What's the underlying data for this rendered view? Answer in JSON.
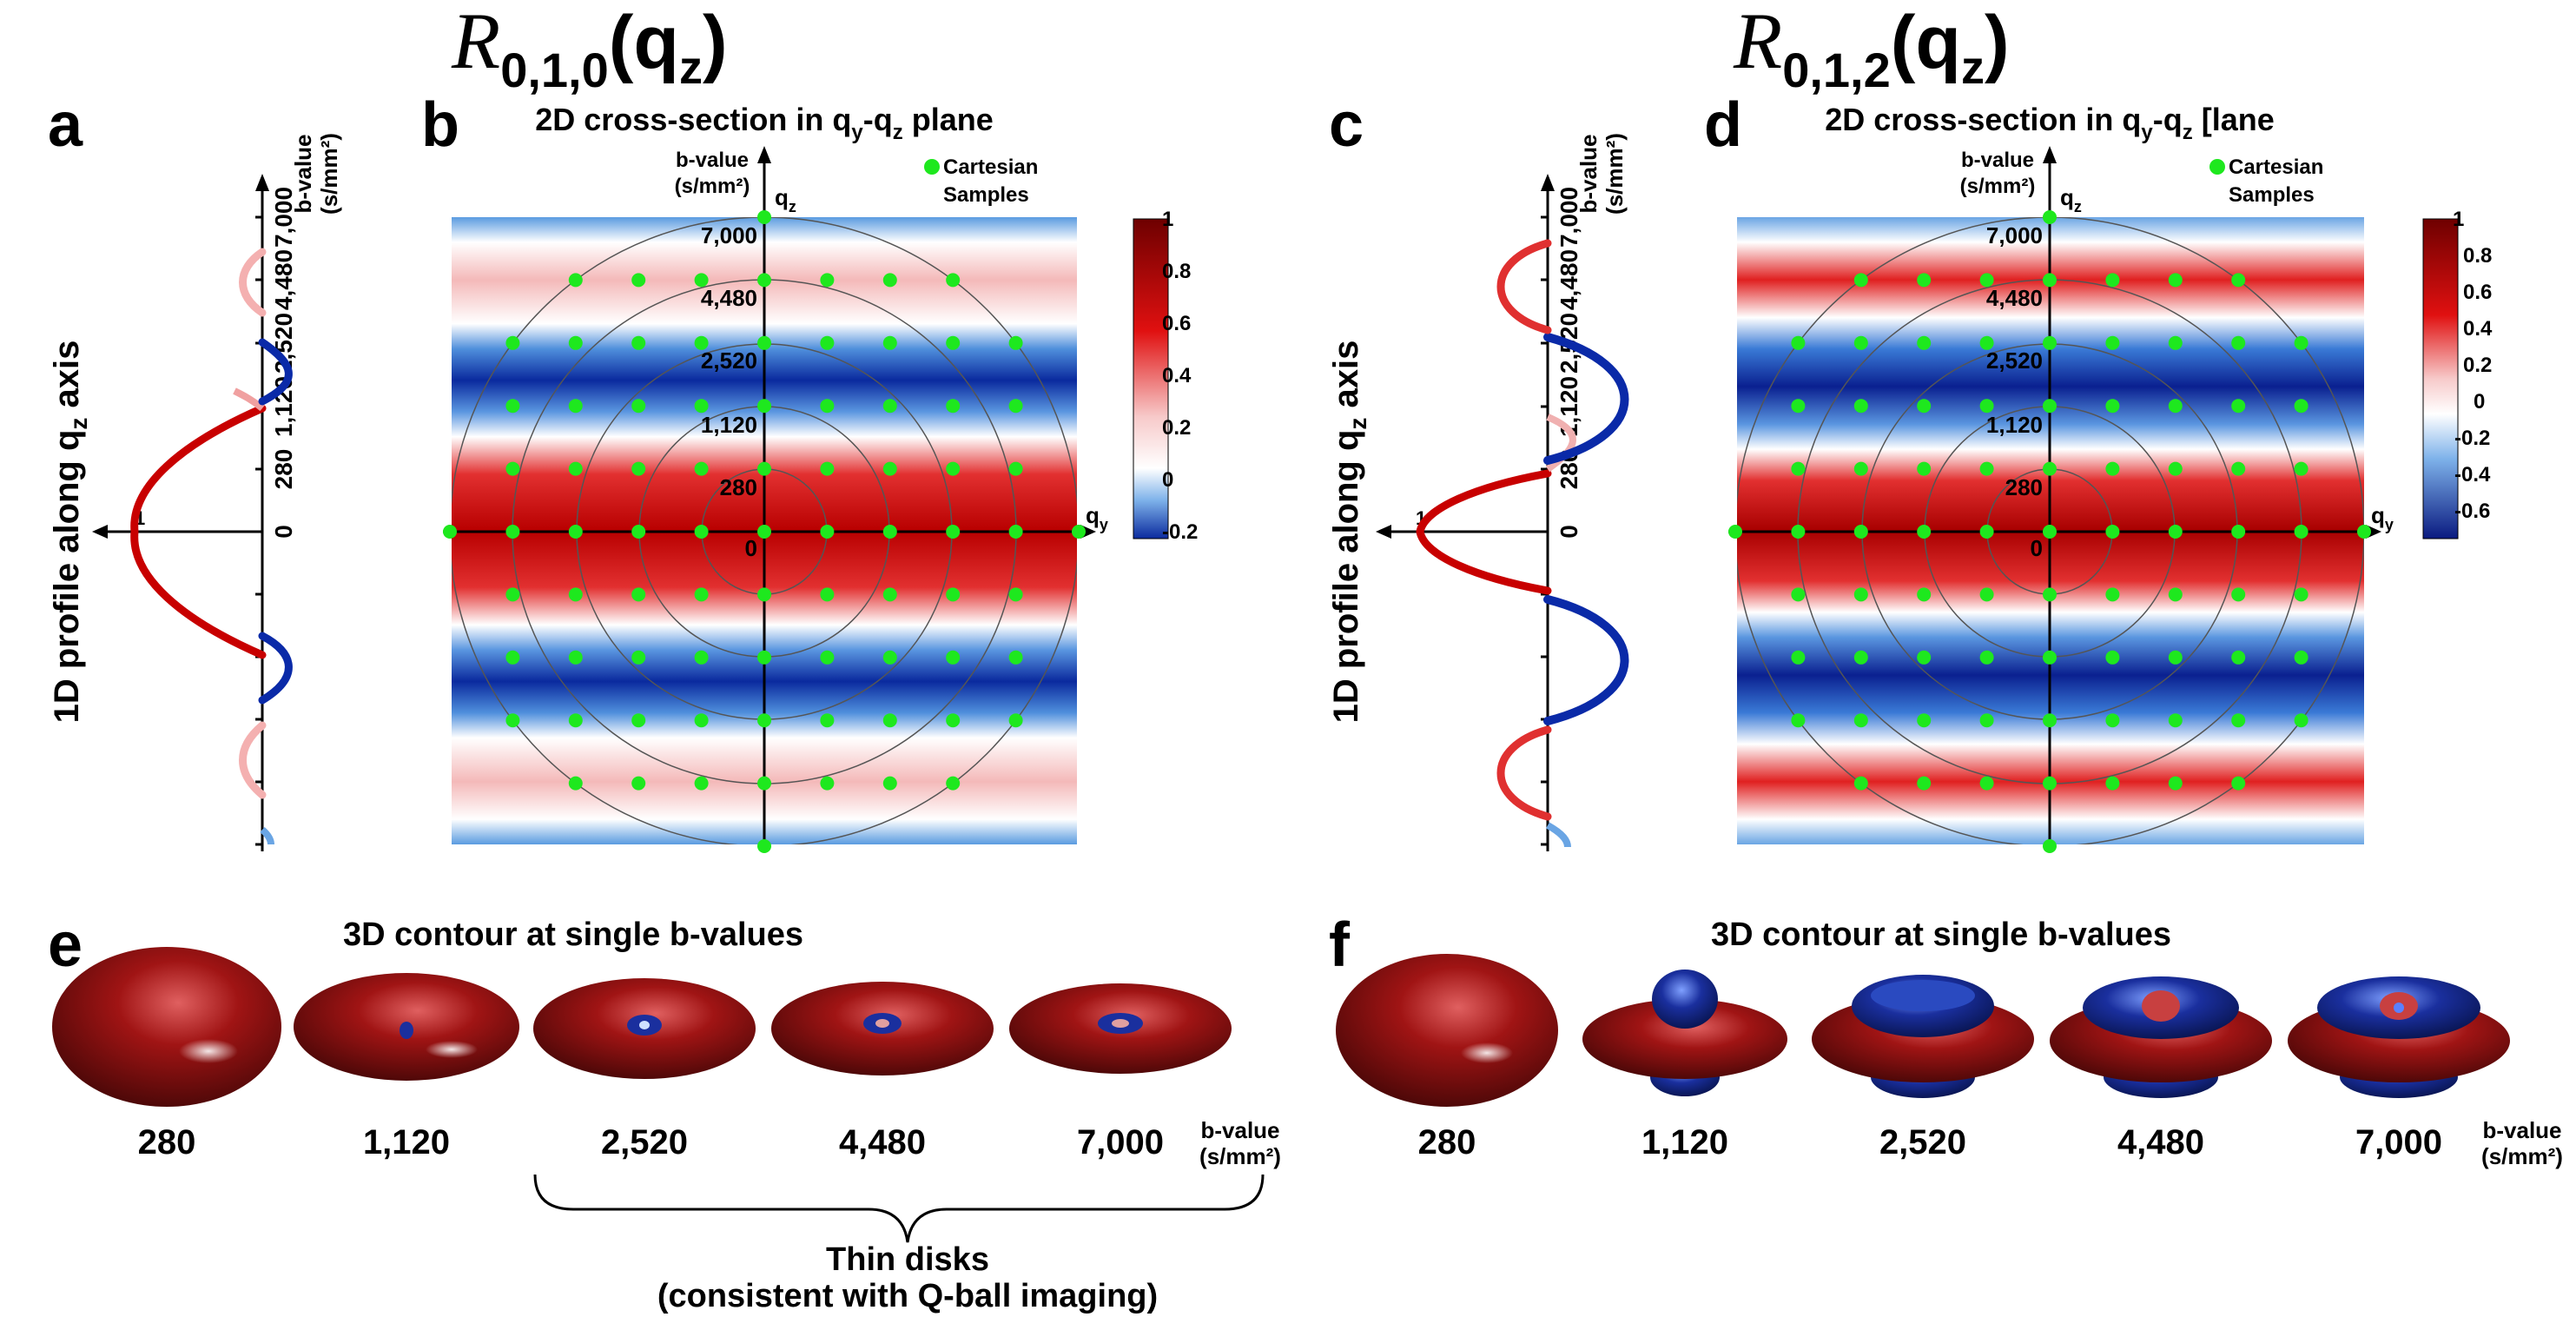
{
  "headers": {
    "left": {
      "base": "R",
      "sub": "0,1,0",
      "arg": "q",
      "arg_sub": "z"
    },
    "right": {
      "base": "R",
      "sub": "0,1,2",
      "arg": "q",
      "arg_sub": "z"
    }
  },
  "panel_letters": {
    "a": "a",
    "b": "b",
    "c": "c",
    "d": "d",
    "e": "e",
    "f": "f"
  },
  "profile_label": {
    "prefix": "1D profile along q",
    "sub": "z",
    "suffix": " axis"
  },
  "profile_axis": {
    "unit_top": "b-value",
    "unit_bottom": "(s/mm²)",
    "ticks": [
      "0",
      "280",
      "1,120",
      "2,520",
      "4,480",
      "7,000"
    ],
    "value_tick": "1"
  },
  "cross_section": {
    "left_title": {
      "prefix": "2D cross-section in q",
      "sub1": "y",
      "mid": "-q",
      "sub2": "z",
      "suffix": " plane"
    },
    "right_title": {
      "prefix": "2D cross-section in q",
      "sub1": "y",
      "mid": "-q",
      "sub2": "z",
      "suffix": " [lane"
    },
    "bvalue_label": "b-value",
    "bvalue_unit": "(s/mm²)",
    "qz_label": {
      "base": "q",
      "sub": "z"
    },
    "qy_label": {
      "base": "q",
      "sub": "y"
    },
    "ring_labels": [
      "0",
      "280",
      "1,120",
      "2,520",
      "4,480",
      "7,000"
    ],
    "legend_line1": "Cartesian",
    "legend_line2": "Samples",
    "legend_color": "#1ee81e"
  },
  "colorbars": {
    "left": [
      "1",
      "0.8",
      "0.6",
      "0.4",
      "0.2",
      "0",
      "-0.2"
    ],
    "right": [
      "1",
      "0.8",
      "0.6",
      "0.4",
      "0.2",
      "0",
      "-0.2",
      "-0.4",
      "-0.6"
    ]
  },
  "contours": {
    "title": "3D contour at single b-values",
    "bvalues": [
      "280",
      "1,120",
      "2,520",
      "4,480",
      "7,000"
    ],
    "unit_top": "b-value",
    "unit_bottom": "(s/mm²)",
    "brace_line1": "Thin disks",
    "brace_line2": "(consistent with Q-ball imaging)"
  },
  "colors": {
    "positive": "#b30000",
    "negative": "#0a2aa8",
    "sample": "#1ee81e",
    "disk_red": "#8c1010",
    "disk_blue": "#1a2f9e"
  }
}
